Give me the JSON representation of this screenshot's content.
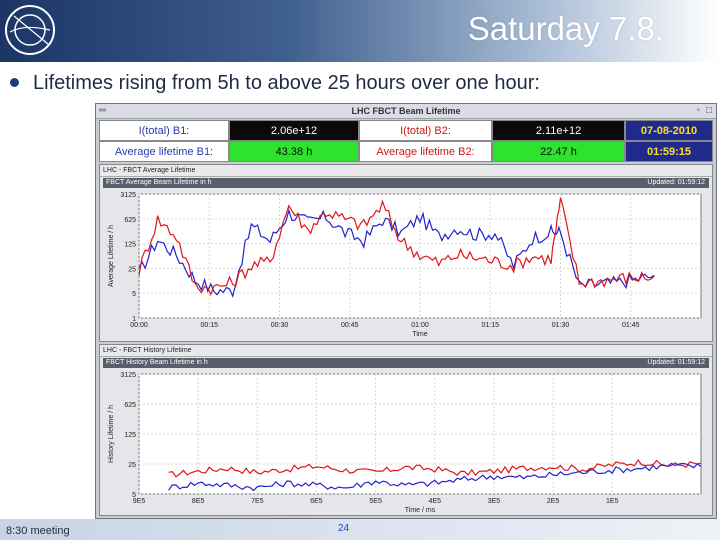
{
  "slide": {
    "title": "Saturday 7.8.",
    "bullet": "Lifetimes rising from 5h to above 25 hours over one hour:",
    "footer_left": "8:30 meeting",
    "page_number": "24",
    "logo_text": "CERN"
  },
  "window": {
    "title": "LHC FBCT Beam Lifetime",
    "info": {
      "b1_intensity_label": "I(total) B1:",
      "b1_intensity_value": "2.06e+12",
      "b2_intensity_label": "I(total) B2:",
      "b2_intensity_value": "2.11e+12",
      "date": "07-08-2010",
      "b1_lifetime_label": "Average lifetime B1:",
      "b1_lifetime_value": "43.38 h",
      "b2_lifetime_label": "Average lifetime B2:",
      "b2_lifetime_value": "22.47 h",
      "time": "01:59:15"
    },
    "colors": {
      "beam1": "#2222cc",
      "beam2": "#e01515",
      "lifetime_ok": "#2ee32e"
    }
  },
  "panel_top": {
    "panel_title": "LHC - FBCT Average Lifetime",
    "plot_title": "FBCT Average Beam Lifetime in h",
    "updated": "Updated: 01:59:12",
    "ylabel": "Average Lifetime / h",
    "xlabel": "Time"
  },
  "panel_bottom": {
    "panel_title": "LHC - FBCT History Lifetime",
    "plot_title": "FBCT History Beam Lifetime in h",
    "updated": "Updated: 01:59:12",
    "ylabel": "History Lifetime / h",
    "xlabel": "Time / ms"
  },
  "chart_data": [
    {
      "type": "line",
      "title": "FBCT Average Beam Lifetime in h",
      "xlabel": "Time",
      "ylabel": "Average Lifetime / h",
      "yscale": "log",
      "y_ticks": [
        "3125",
        "625",
        "125",
        "25",
        "5",
        "1"
      ],
      "x_ticks": [
        "00:00",
        "00:15",
        "00:30",
        "00:45",
        "01:00",
        "01:15",
        "01:30",
        "01:45"
      ],
      "grid": true,
      "series": [
        {
          "color": "#2222cc",
          "x": [
            0,
            4,
            8,
            12,
            16,
            20,
            24,
            28,
            32,
            36,
            40,
            44,
            48,
            52,
            56,
            60,
            64,
            68,
            72,
            76,
            80,
            84,
            88,
            90,
            94,
            98,
            102,
            106,
            110
          ],
          "values": [
            18,
            160,
            60,
            12,
            6,
            6,
            400,
            150,
            900,
            500,
            700,
            250,
            150,
            600,
            250,
            700,
            200,
            350,
            220,
            250,
            30,
            180,
            260,
            260,
            8,
            9,
            10,
            12,
            16
          ]
        },
        {
          "color": "#e01515",
          "x": [
            0,
            4,
            8,
            12,
            16,
            20,
            24,
            28,
            32,
            36,
            40,
            44,
            48,
            52,
            56,
            60,
            64,
            68,
            72,
            76,
            80,
            84,
            88,
            90,
            94,
            98,
            102,
            106,
            110
          ],
          "values": [
            22,
            600,
            200,
            8,
            7,
            10,
            30,
            40,
            1500,
            300,
            1000,
            600,
            400,
            1500,
            150,
            60,
            35,
            60,
            50,
            40,
            30,
            55,
            45,
            2000,
            10,
            11,
            13,
            14,
            15
          ]
        }
      ]
    },
    {
      "type": "line",
      "title": "FBCT History Beam Lifetime in h",
      "xlabel": "Time / ms",
      "ylabel": "History Lifetime / h",
      "yscale": "log",
      "y_ticks": [
        "3125",
        "625",
        "125",
        "25",
        "5"
      ],
      "x_ticks": [
        "9E5",
        "8E5",
        "7E5",
        "6E5",
        "5E5",
        "4E5",
        "3E5",
        "2E5",
        "1E5"
      ],
      "grid": true,
      "series": [
        {
          "color": "#e01515",
          "x": [
            9,
            8.5,
            8,
            7.5,
            7,
            6.5,
            6,
            5.5,
            5,
            4.5,
            4,
            3.5,
            3,
            2.5,
            2,
            1.5,
            1,
            0.5,
            0
          ],
          "values": [
            14,
            17,
            20,
            16,
            19,
            22,
            18,
            16,
            21,
            19,
            15,
            17,
            20,
            22,
            19,
            24,
            28,
            23,
            26
          ]
        },
        {
          "color": "#2222cc",
          "x": [
            9,
            8.5,
            8,
            7.5,
            7,
            6.5,
            6,
            5.5,
            5,
            4.5,
            4,
            3.5,
            3,
            2.5,
            2,
            1.5,
            1,
            0.5,
            0
          ],
          "values": [
            7,
            9,
            8,
            7,
            9,
            8,
            7,
            10,
            8,
            9,
            11,
            13,
            12,
            14,
            16,
            18,
            20,
            23,
            22
          ]
        }
      ]
    }
  ]
}
